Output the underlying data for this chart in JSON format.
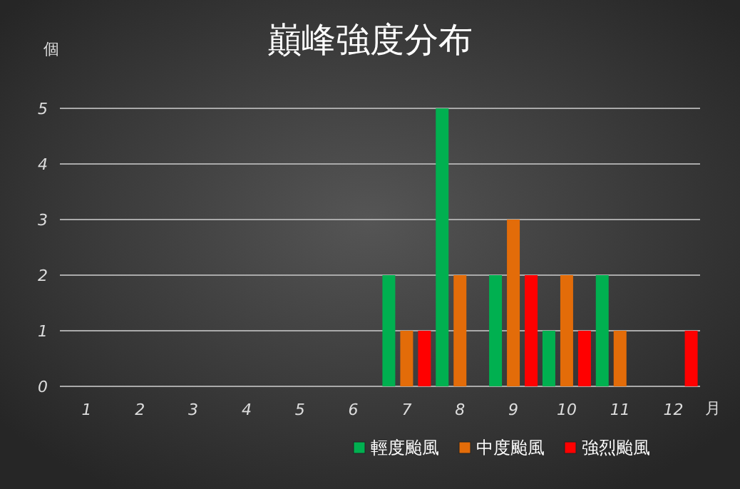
{
  "chart_data": {
    "type": "bar",
    "title": "巔峰強度分布",
    "ylabel": "個",
    "xlabel": "月",
    "categories": [
      "1",
      "2",
      "3",
      "4",
      "5",
      "6",
      "7",
      "8",
      "9",
      "10",
      "11",
      "12"
    ],
    "series": [
      {
        "name": "輕度颱風",
        "color": "#00b050",
        "values": [
          0,
          0,
          0,
          0,
          0,
          0,
          2,
          5,
          2,
          1,
          2,
          0
        ]
      },
      {
        "name": "中度颱風",
        "color": "#e36c09",
        "values": [
          0,
          0,
          0,
          0,
          0,
          0,
          1,
          2,
          3,
          2,
          1,
          0
        ]
      },
      {
        "name": "強烈颱風",
        "color": "#ff0000",
        "values": [
          0,
          0,
          0,
          0,
          0,
          0,
          1,
          0,
          2,
          1,
          0,
          1
        ]
      }
    ],
    "ylim": [
      0,
      5
    ],
    "yticks": [
      0,
      1,
      2,
      3,
      4,
      5
    ],
    "grid": "y",
    "legend": "bottom right"
  }
}
